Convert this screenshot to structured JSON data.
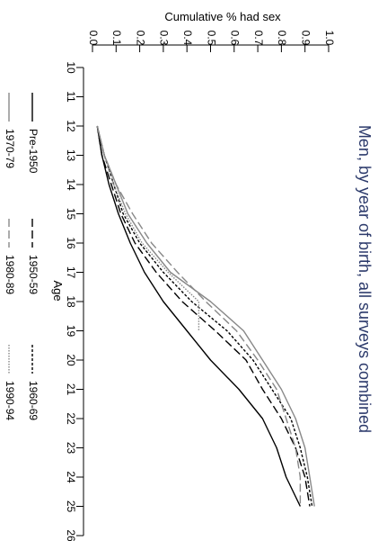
{
  "chart_data": {
    "type": "line",
    "title": "Men, by year of birth, all surveys combined",
    "xlabel": "Age",
    "ylabel": "Cumulative % had sex",
    "xlim": [
      10,
      26
    ],
    "ylim": [
      0,
      1
    ],
    "x_ticks": [
      "10",
      "11",
      "12",
      "13",
      "14",
      "15",
      "16",
      "17",
      "18",
      "19",
      "20",
      "21",
      "22",
      "23",
      "24",
      "25",
      "26"
    ],
    "y_ticks": [
      "0.0",
      "0.1",
      "0.2",
      "0.3",
      "0.4",
      "0.5",
      "0.6",
      "0.7",
      "0.8",
      "0.9",
      "1.0"
    ],
    "orientation": "rotated-90-clockwise",
    "legend_position": "bottom",
    "series": [
      {
        "name": "Pre-1950",
        "color": "#000000",
        "dash": "solid",
        "x": [
          12,
          13,
          14,
          15,
          16,
          17,
          18,
          19,
          20,
          21,
          22,
          23,
          24,
          25
        ],
        "y": [
          0.02,
          0.04,
          0.07,
          0.11,
          0.16,
          0.22,
          0.3,
          0.4,
          0.5,
          0.62,
          0.72,
          0.78,
          0.82,
          0.88
        ]
      },
      {
        "name": "1950-59",
        "color": "#000000",
        "dash": "long",
        "x": [
          12,
          13,
          14,
          15,
          16,
          17,
          18,
          19,
          20,
          21,
          22,
          23,
          24,
          25
        ],
        "y": [
          0.02,
          0.04,
          0.08,
          0.12,
          0.18,
          0.27,
          0.38,
          0.52,
          0.65,
          0.72,
          0.8,
          0.86,
          0.9,
          0.92
        ]
      },
      {
        "name": "1960-69",
        "color": "#000000",
        "dash": "short",
        "x": [
          12,
          13,
          14,
          15,
          16,
          17,
          18,
          19,
          20,
          21,
          22,
          23,
          24,
          25
        ],
        "y": [
          0.02,
          0.05,
          0.09,
          0.13,
          0.2,
          0.3,
          0.42,
          0.57,
          0.68,
          0.76,
          0.84,
          0.88,
          0.91,
          0.93
        ]
      },
      {
        "name": "1970-79",
        "color": "#888888",
        "dash": "solid",
        "x": [
          12,
          13,
          14,
          15,
          16,
          17,
          18,
          19,
          20,
          21,
          22,
          23,
          24,
          25
        ],
        "y": [
          0.02,
          0.05,
          0.1,
          0.15,
          0.23,
          0.33,
          0.5,
          0.64,
          0.72,
          0.8,
          0.86,
          0.9,
          0.92,
          0.94
        ]
      },
      {
        "name": "1980-89",
        "color": "#888888",
        "dash": "long",
        "x": [
          12,
          13,
          14,
          15,
          16,
          17,
          18,
          19,
          20,
          21,
          22,
          23,
          24,
          25
        ],
        "y": [
          0.02,
          0.05,
          0.1,
          0.17,
          0.25,
          0.36,
          0.48,
          0.61,
          0.7,
          0.78,
          0.82,
          0.86,
          0.88,
          0.88
        ]
      },
      {
        "name": "1990-94",
        "color": "#888888",
        "dash": "dotted",
        "x": [
          12,
          13,
          14,
          15,
          16,
          17,
          18,
          19
        ],
        "y": [
          0.02,
          0.05,
          0.09,
          0.14,
          0.21,
          0.32,
          0.45,
          0.45
        ]
      }
    ]
  }
}
